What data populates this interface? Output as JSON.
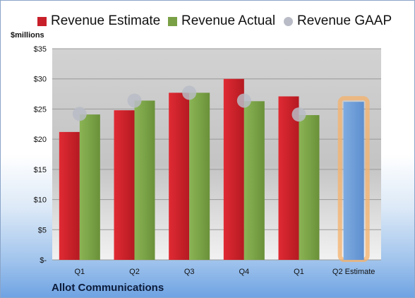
{
  "legend": {
    "estimate_label": "Revenue Estimate",
    "actual_label": "Revenue Actual",
    "gaap_label": "Revenue GAAP"
  },
  "unit_label": "$millions",
  "company": "Allot Communications",
  "colors": {
    "estimate": "#c8202a",
    "actual": "#7aa046",
    "gaap": "#b9bcc6",
    "projected": "#6f9fd8",
    "highlight": "#f5b26b",
    "plot_bg": "#cfcfcf"
  },
  "chart_data": {
    "type": "bar",
    "categories": [
      "Q1",
      "Q2",
      "Q3",
      "Q4",
      "Q1",
      "Q2 Estimate"
    ],
    "series": [
      {
        "name": "Revenue Estimate",
        "values": [
          21.2,
          24.8,
          27.7,
          30.0,
          27.1,
          null
        ]
      },
      {
        "name": "Revenue Actual",
        "values": [
          24.1,
          26.4,
          27.7,
          26.3,
          24.0,
          26.2
        ]
      },
      {
        "name": "Revenue GAAP",
        "values": [
          24.2,
          26.4,
          27.7,
          26.4,
          24.1,
          null
        ]
      }
    ],
    "ylim": [
      0,
      35
    ],
    "yticks": [
      0,
      5,
      10,
      15,
      20,
      25,
      30,
      35
    ],
    "ytick_labels": [
      "$-",
      "$5",
      "$10",
      "$15",
      "$20",
      "$25",
      "$30",
      "$35"
    ],
    "grid": true,
    "legend_position": "top"
  }
}
